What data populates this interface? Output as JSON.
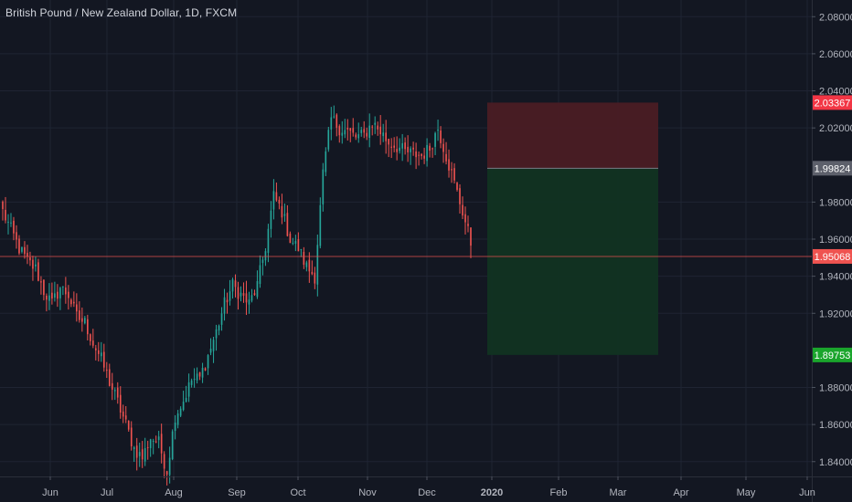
{
  "header": {
    "title": "British Pound / New Zealand Dollar, 1D, FXCM"
  },
  "colors": {
    "background": "#131722",
    "grid": "#1f2433",
    "up": "#26a69a",
    "down": "#ef5350",
    "stop_zone": "#4a1c24",
    "target_zone": "#113322",
    "current_price_line": "#ef5350",
    "stop_badge": "#f23645",
    "entry_badge": "#5d606b",
    "current_badge": "#ef5350",
    "target_badge": "#1aa52c"
  },
  "chart_data": {
    "type": "candlestick",
    "symbol": "British Pound / New Zealand Dollar",
    "interval": "1D",
    "source": "FXCM",
    "ylim": [
      1.832,
      2.089
    ],
    "y_ticks": [
      "2.08000",
      "2.06000",
      "2.04000",
      "2.02000",
      "1.98000",
      "1.96000",
      "1.94000",
      "1.92000",
      "1.88000",
      "1.86000",
      "1.84000"
    ],
    "x_ticks": [
      "Jun",
      "Jul",
      "Aug",
      "Sep",
      "Oct",
      "Nov",
      "Dec",
      "2020",
      "Feb",
      "Mar",
      "Apr",
      "May",
      "Jun"
    ],
    "price_labels": {
      "stop": "2.03367",
      "entry": "1.99824",
      "current": "1.95068",
      "target": "1.89753"
    },
    "levels": {
      "stop": 2.03367,
      "entry": 1.99824,
      "current": 1.95068,
      "target": 1.89753
    },
    "close_path": [
      [
        0,
        1.975
      ],
      [
        3,
        1.965
      ],
      [
        6,
        1.955
      ],
      [
        9,
        1.948
      ],
      [
        12,
        1.944
      ],
      [
        15,
        1.932
      ],
      [
        18,
        1.925
      ],
      [
        21,
        1.934
      ],
      [
        24,
        1.93
      ],
      [
        27,
        1.918
      ],
      [
        30,
        1.915
      ],
      [
        33,
        1.904
      ],
      [
        36,
        1.895
      ],
      [
        39,
        1.883
      ],
      [
        42,
        1.872
      ],
      [
        45,
        1.86
      ],
      [
        48,
        1.847
      ],
      [
        51,
        1.842
      ],
      [
        54,
        1.853
      ],
      [
        57,
        1.85
      ],
      [
        60,
        1.835
      ],
      [
        63,
        1.865
      ],
      [
        66,
        1.873
      ],
      [
        69,
        1.884
      ],
      [
        72,
        1.885
      ],
      [
        75,
        1.897
      ],
      [
        78,
        1.91
      ],
      [
        81,
        1.925
      ],
      [
        84,
        1.935
      ],
      [
        87,
        1.93
      ],
      [
        90,
        1.925
      ],
      [
        93,
        1.935
      ],
      [
        96,
        1.956
      ],
      [
        99,
        1.983
      ],
      [
        102,
        1.975
      ],
      [
        105,
        1.96
      ],
      [
        108,
        1.955
      ],
      [
        111,
        1.945
      ],
      [
        114,
        1.94
      ],
      [
        117,
        1.995
      ],
      [
        120,
        2.025
      ],
      [
        123,
        2.02
      ],
      [
        126,
        2.018
      ],
      [
        129,
        2.015
      ],
      [
        132,
        2.016
      ],
      [
        135,
        2.023
      ],
      [
        138,
        2.018
      ],
      [
        141,
        2.012
      ],
      [
        144,
        2.01
      ],
      [
        147,
        2.007
      ],
      [
        150,
        2.006
      ],
      [
        153,
        2.005
      ],
      [
        156,
        2.009
      ],
      [
        159,
        2.02
      ],
      [
        162,
        2.005
      ],
      [
        165,
        1.99
      ],
      [
        168,
        1.975
      ],
      [
        171,
        1.958
      ]
    ],
    "date_range": {
      "start": "2019-05-06",
      "end": "2019-12-20"
    }
  }
}
